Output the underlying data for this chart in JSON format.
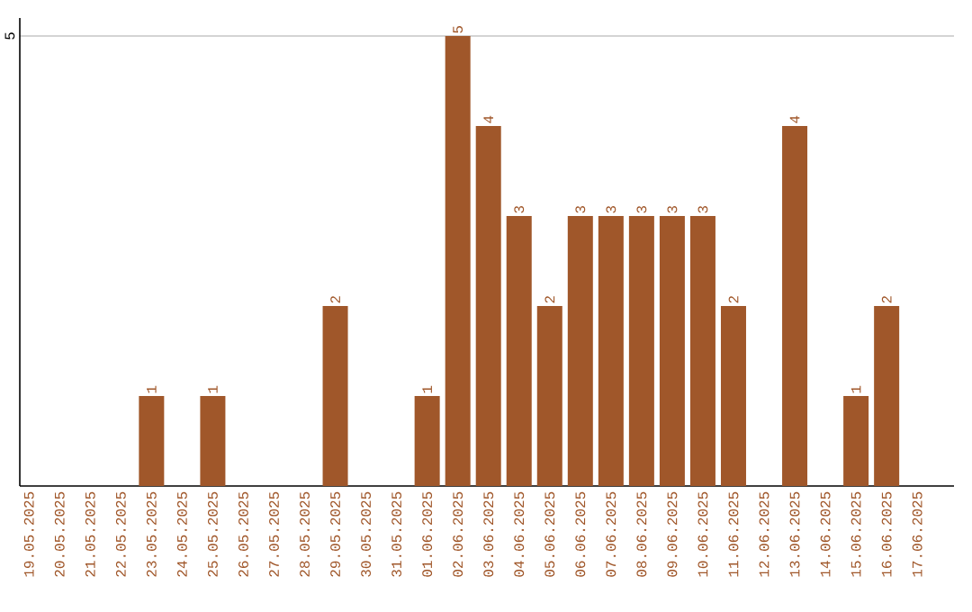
{
  "chart_data": {
    "type": "bar",
    "categories": [
      "19.05.2025",
      "20.05.2025",
      "21.05.2025",
      "22.05.2025",
      "23.05.2025",
      "24.05.2025",
      "25.05.2025",
      "26.05.2025",
      "27.05.2025",
      "28.05.2025",
      "29.05.2025",
      "30.05.2025",
      "31.05.2025",
      "01.06.2025",
      "02.06.2025",
      "03.06.2025",
      "04.06.2025",
      "05.06.2025",
      "06.06.2025",
      "07.06.2025",
      "08.06.2025",
      "09.06.2025",
      "10.06.2025",
      "11.06.2025",
      "12.06.2025",
      "13.06.2025",
      "14.06.2025",
      "15.06.2025",
      "16.06.2025",
      "17.06.2025"
    ],
    "values": [
      0,
      0,
      0,
      0,
      1,
      0,
      1,
      0,
      0,
      0,
      2,
      0,
      0,
      1,
      5,
      4,
      3,
      2,
      3,
      3,
      3,
      3,
      3,
      2,
      0,
      4,
      0,
      1,
      2,
      0
    ],
    "value_labels": [
      null,
      null,
      null,
      null,
      "1",
      null,
      "1",
      null,
      null,
      null,
      "2",
      null,
      null,
      "1",
      "5",
      "4",
      "3",
      "2",
      "3",
      "3",
      "3",
      "3",
      "3",
      "2",
      null,
      "4",
      null,
      "1",
      "2",
      null
    ],
    "color": "#a0572a",
    "ylim": [
      0,
      5.2
    ],
    "yticks": [
      5
    ],
    "grid": "y"
  }
}
